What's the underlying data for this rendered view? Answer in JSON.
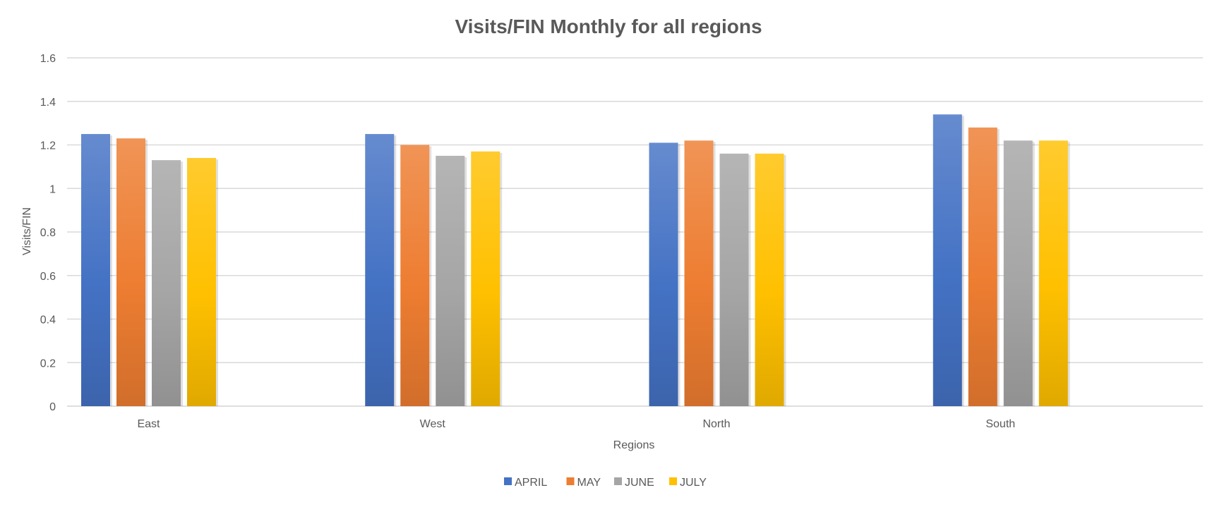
{
  "chart_data": {
    "type": "bar",
    "title": "Visits/FIN Monthly for all regions",
    "xlabel": "Regions",
    "ylabel": "Visits/FIN",
    "categories": [
      "East",
      "West",
      "North",
      "South"
    ],
    "series": [
      {
        "name": "APRIL",
        "values": [
          1.25,
          1.25,
          1.21,
          1.34
        ],
        "color": "#4472C4"
      },
      {
        "name": "MAY",
        "values": [
          1.23,
          1.2,
          1.22,
          1.28
        ],
        "color": "#ED7D31"
      },
      {
        "name": "JUNE",
        "values": [
          1.13,
          1.15,
          1.16,
          1.22
        ],
        "color": "#A5A5A5"
      },
      {
        "name": "JULY",
        "values": [
          1.14,
          1.17,
          1.16,
          1.22
        ],
        "color": "#FFC000"
      }
    ],
    "ylim": [
      0,
      1.6
    ],
    "yticks": [
      "0",
      "0.2",
      "0.4",
      "0.6",
      "0.8",
      "1",
      "1.2",
      "1.4",
      "1.6"
    ],
    "grid": true,
    "legend_position": "bottom"
  }
}
